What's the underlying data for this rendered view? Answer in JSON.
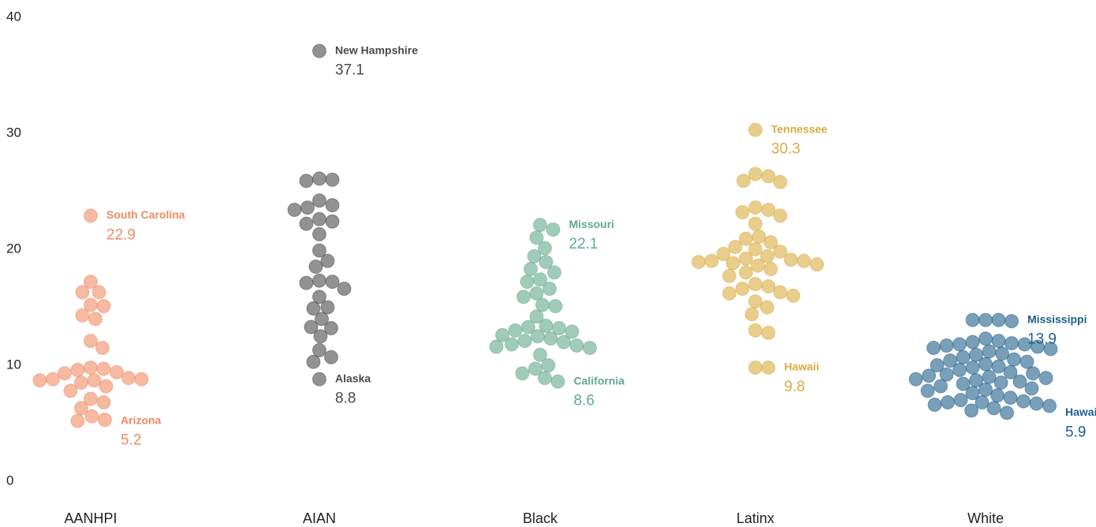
{
  "chart_data": {
    "type": "beeswarm",
    "ylim": [
      0,
      40
    ],
    "yticks": [
      0,
      10,
      20,
      30,
      40
    ],
    "series": [
      {
        "name": "AANHPI",
        "color": "#f08a62",
        "values": [
          22.9,
          17.2,
          16.3,
          16.3,
          15.2,
          15.1,
          14.3,
          14.0,
          12.1,
          11.5,
          9.8,
          9.7,
          9.6,
          9.4,
          9.3,
          8.9,
          8.8,
          8.8,
          8.7,
          8.7,
          8.5,
          8.2,
          7.8,
          7.1,
          6.8,
          6.3,
          5.6,
          5.3,
          5.2
        ],
        "annotations": [
          {
            "text": "South Carolina",
            "value": 22.9
          },
          {
            "text": "Arizona",
            "value": 5.2
          }
        ]
      },
      {
        "name": "AIAN",
        "color": "#4a4a4a",
        "values": [
          37.1,
          26.1,
          26.0,
          25.9,
          24.2,
          23.8,
          23.6,
          23.4,
          22.6,
          22.4,
          22.2,
          21.3,
          19.9,
          19.0,
          18.5,
          17.3,
          17.2,
          17.1,
          16.6,
          15.9,
          15.0,
          14.9,
          14.0,
          13.3,
          13.2,
          12.5,
          11.3,
          10.7,
          10.3,
          8.8
        ],
        "annotations": [
          {
            "text": "New Hampshire",
            "value": 37.1
          },
          {
            "text": "Alaska",
            "value": 8.8
          }
        ]
      },
      {
        "name": "Black",
        "color": "#62a98b",
        "values": [
          22.1,
          21.7,
          21.0,
          20.1,
          19.4,
          18.9,
          18.3,
          18.0,
          17.4,
          17.2,
          16.6,
          16.2,
          15.9,
          15.2,
          15.1,
          14.2,
          13.4,
          13.3,
          13.2,
          13.0,
          12.9,
          12.6,
          12.5,
          12.3,
          12.1,
          12.0,
          11.8,
          11.7,
          11.6,
          11.5,
          10.9,
          10.0,
          9.7,
          9.3,
          8.9,
          8.6
        ],
        "annotations": [
          {
            "text": "Missouri",
            "value": 22.1
          },
          {
            "text": "California",
            "value": 8.6
          }
        ]
      },
      {
        "name": "Latinx",
        "color": "#d9ab3f",
        "values": [
          30.3,
          26.5,
          26.3,
          25.9,
          25.8,
          23.6,
          23.4,
          23.2,
          22.9,
          22.2,
          21.1,
          20.9,
          20.6,
          20.2,
          20.0,
          19.8,
          19.6,
          19.4,
          19.2,
          19.1,
          19.0,
          19.0,
          18.9,
          18.8,
          18.7,
          18.6,
          18.3,
          18.0,
          17.7,
          17.0,
          16.8,
          16.6,
          16.3,
          16.2,
          16.0,
          15.5,
          15.0,
          14.4,
          13.0,
          12.8,
          9.8,
          9.8
        ],
        "annotations": [
          {
            "text": "Tennessee",
            "value": 30.3
          },
          {
            "text": "Hawaii",
            "value": 9.8
          }
        ]
      },
      {
        "name": "White",
        "color": "#1f5f8b",
        "values": [
          13.9,
          13.9,
          13.9,
          13.8,
          12.3,
          12.1,
          12.0,
          11.9,
          11.8,
          11.8,
          11.7,
          11.6,
          11.5,
          11.4,
          11.2,
          11.0,
          10.9,
          10.7,
          10.5,
          10.4,
          10.3,
          10.1,
          10.0,
          9.9,
          9.8,
          9.6,
          9.4,
          9.3,
          9.2,
          9.1,
          9.0,
          8.9,
          8.8,
          8.7,
          8.6,
          8.5,
          8.4,
          8.2,
          8.0,
          7.9,
          7.8,
          7.6,
          7.4,
          7.2,
          7.0,
          6.9,
          6.8,
          6.8,
          6.7,
          6.6,
          6.5,
          6.3,
          6.1,
          5.9
        ],
        "annotations": [
          {
            "text": "Mississippi",
            "value": 13.9
          },
          {
            "text": "Hawaii",
            "value": 5.9
          }
        ]
      }
    ]
  }
}
